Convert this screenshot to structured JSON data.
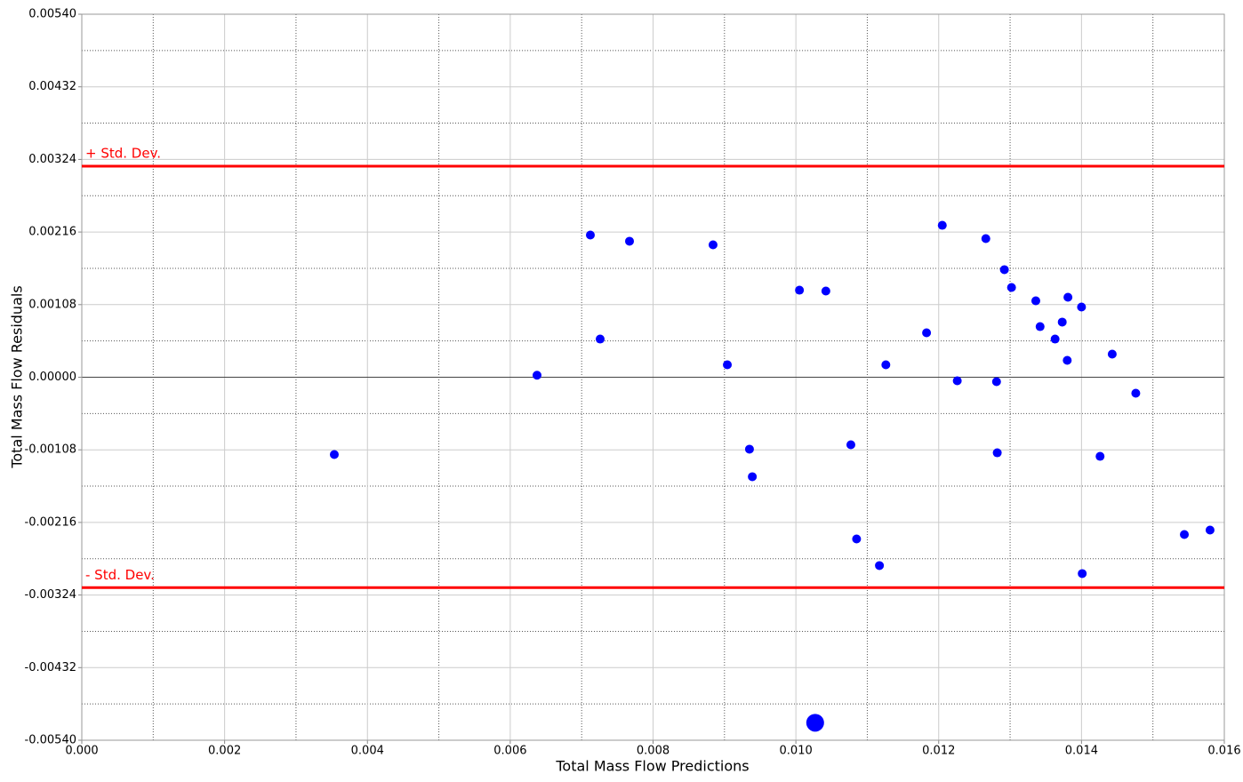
{
  "chart_data": {
    "type": "scatter",
    "xlabel": "Total Mass Flow Predictions",
    "ylabel": "Total Mass Flow Residuals",
    "xlim": [
      0,
      0.016
    ],
    "ylim": [
      -0.0054,
      0.0054
    ],
    "xticks": [
      {
        "value": 0,
        "label": "0.000"
      },
      {
        "value": 0.002,
        "label": "0.002"
      },
      {
        "value": 0.004,
        "label": "0.004"
      },
      {
        "value": 0.006,
        "label": "0.006"
      },
      {
        "value": 0.008,
        "label": "0.008"
      },
      {
        "value": 0.01,
        "label": "0.010"
      },
      {
        "value": 0.012,
        "label": "0.012"
      },
      {
        "value": 0.014,
        "label": "0.014"
      },
      {
        "value": 0.016,
        "label": "0.016"
      }
    ],
    "yticks": [
      {
        "value": 0.0054,
        "label": "0.00540"
      },
      {
        "value": 0.00432,
        "label": "0.00432"
      },
      {
        "value": 0.00324,
        "label": "0.00324"
      },
      {
        "value": 0.00216,
        "label": "0.00216"
      },
      {
        "value": 0.00108,
        "label": "0.00108"
      },
      {
        "value": 0,
        "label": "0.00000"
      },
      {
        "value": -0.00108,
        "label": "-0.00108"
      },
      {
        "value": -0.00216,
        "label": "-0.00216"
      },
      {
        "value": -0.00324,
        "label": "-0.00324"
      },
      {
        "value": -0.00432,
        "label": "-0.00432"
      },
      {
        "value": -0.0054,
        "label": "-0.00540"
      }
    ],
    "minor_xticks": [
      0.001,
      0.003,
      0.005,
      0.007,
      0.009,
      0.011,
      0.013,
      0.015
    ],
    "minor_yticks": [
      0.00486,
      0.00378,
      0.0027,
      0.00162,
      0.00054,
      -0.00054,
      -0.00162,
      -0.0027,
      -0.00378,
      -0.00486
    ],
    "grid": true,
    "hlines": [
      {
        "value": 0.00314,
        "label": "+ Std. Dev.",
        "color": "#ff0000"
      },
      {
        "value": -0.00313,
        "label": "- Std. Dev.",
        "color": "#ff0000"
      }
    ],
    "series": [
      {
        "color": "#0000ff",
        "x": [
          0.003536,
          0.006375,
          0.007122,
          0.007259,
          0.00767,
          0.00884,
          0.00904,
          0.00935,
          0.00939,
          0.01005,
          0.01042,
          0.01027,
          0.01077,
          0.01085,
          0.01117,
          0.01126,
          0.01183,
          0.01205,
          0.01226,
          0.01266,
          0.01281,
          0.01282,
          0.01292,
          0.01302,
          0.01336,
          0.01342,
          0.01363,
          0.01373,
          0.01381,
          0.0138,
          0.014,
          0.01401,
          0.01426,
          0.01443,
          0.01476,
          0.01544,
          0.0158
        ],
        "values": [
          -0.00115,
          3e-05,
          0.002115,
          0.000568,
          0.002023,
          0.00197,
          0.000185,
          -0.00107,
          -0.00148,
          0.001295,
          0.001282,
          -0.00514,
          -0.001005,
          -0.002406,
          -0.002802,
          0.000185,
          0.000661,
          0.00226,
          -5.3e-05,
          0.002062,
          -6.6e-05,
          -0.001124,
          0.0016,
          0.001335,
          0.001137,
          0.000753,
          0.000568,
          0.00082,
          0.00119,
          0.000251,
          0.001044,
          -0.002921,
          -0.001177,
          0.000344,
          -0.000238,
          -0.00234,
          -0.002274
        ],
        "sizes": [
          1,
          1,
          1,
          1,
          1,
          1,
          1,
          1,
          1,
          1,
          1,
          2,
          1,
          1,
          1,
          1,
          1,
          1,
          1,
          1,
          1,
          1,
          1,
          1,
          1,
          1,
          1,
          1,
          1,
          1,
          1,
          1,
          1,
          1,
          1,
          1,
          1
        ]
      }
    ]
  }
}
